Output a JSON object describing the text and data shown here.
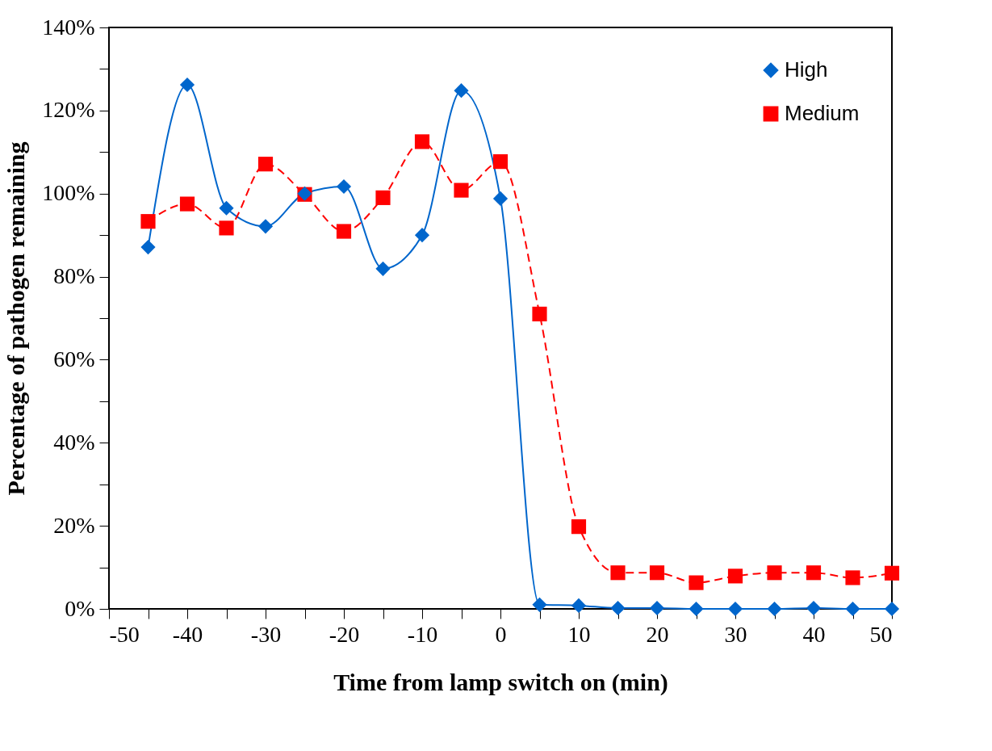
{
  "chart_data": {
    "type": "line",
    "xlabel": "Time from lamp switch on (min)",
    "ylabel": "Percentage of pathogen remaining",
    "x": [
      -45,
      -40,
      -35,
      -30,
      -25,
      -20,
      -15,
      -10,
      -5,
      0,
      5,
      10,
      15,
      20,
      25,
      30,
      35,
      40,
      45,
      50
    ],
    "series": [
      {
        "name": "High",
        "color": "#0066cc",
        "marker": "diamond",
        "line_style": "solid",
        "values": [
          87.1,
          126.2,
          96.5,
          92.1,
          100,
          101.7,
          81.9,
          90,
          124.8,
          98.8,
          1,
          0.8,
          0.2,
          0.2,
          0,
          0,
          0,
          0.2,
          0,
          0
        ]
      },
      {
        "name": "Medium",
        "color": "#ff0000",
        "marker": "square",
        "line_style": "dashed",
        "values": [
          93.3,
          97.5,
          91.7,
          107.1,
          99.8,
          90.9,
          99,
          112.5,
          100.8,
          107.7,
          71,
          19.8,
          8.7,
          8.7,
          6.3,
          7.9,
          8.7,
          8.7,
          7.5,
          8.6
        ]
      }
    ],
    "xlim": [
      -50,
      50
    ],
    "xticks": [
      -50,
      {
        "value": -45,
        "label": null
      },
      -40,
      {
        "value": -35,
        "label": null
      },
      -30,
      {
        "value": -25,
        "label": null
      },
      -20,
      {
        "value": -15,
        "label": null
      },
      -10,
      {
        "value": -5,
        "label": null
      },
      0,
      {
        "value": 5,
        "label": null
      },
      10,
      {
        "value": 15,
        "label": null
      },
      20,
      {
        "value": 25,
        "label": null
      },
      30,
      {
        "value": 35,
        "label": null
      },
      40,
      {
        "value": 45,
        "label": null
      },
      50
    ],
    "ylim": [
      0,
      140
    ],
    "yticks": [
      {
        "value": 0,
        "label": "0%"
      },
      {
        "value": 10,
        "label": null
      },
      {
        "value": 20,
        "label": "20%"
      },
      {
        "value": 30,
        "label": null
      },
      {
        "value": 40,
        "label": "40%"
      },
      {
        "value": 50,
        "label": null
      },
      {
        "value": 60,
        "label": "60%"
      },
      {
        "value": 70,
        "label": null
      },
      {
        "value": 80,
        "label": "80%"
      },
      {
        "value": 90,
        "label": null
      },
      {
        "value": 100,
        "label": "100%"
      },
      {
        "value": 110,
        "label": null
      },
      {
        "value": 120,
        "label": "120%"
      },
      {
        "value": 130,
        "label": null
      },
      {
        "value": 140,
        "label": "140%"
      }
    ],
    "grid": false,
    "legend": "top right"
  }
}
